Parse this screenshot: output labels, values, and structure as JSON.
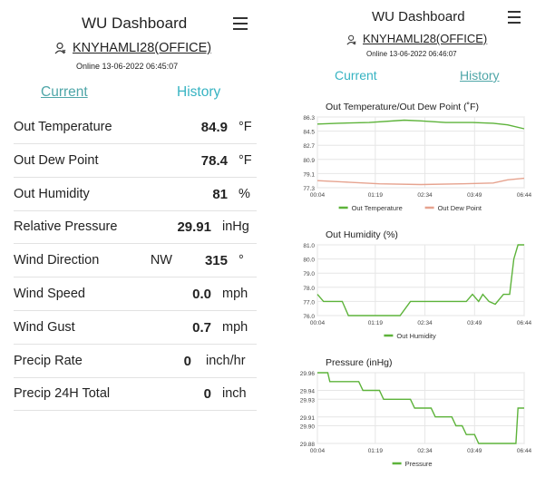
{
  "left": {
    "title": "WU Dashboard",
    "station": "KNYHAMLI28(OFFICE)",
    "online": "Online 13-06-2022 06:45:07",
    "tabs": [
      {
        "label": "Current",
        "active": true
      },
      {
        "label": "History",
        "active": false
      }
    ],
    "rows": [
      {
        "label": "Out Temperature",
        "value": "84.9",
        "unit": "°F"
      },
      {
        "label": "Out Dew Point",
        "value": "78.4",
        "unit": "°F"
      },
      {
        "label": "Out Humidity",
        "value": "81",
        "unit": "%"
      },
      {
        "label": "Relative Pressure",
        "value": "29.91",
        "unit": "inHg"
      },
      {
        "label": "Wind Direction",
        "dir": "NW",
        "value": "315",
        "unit": "°"
      },
      {
        "label": "Wind Speed",
        "value": "0.0",
        "unit": "mph"
      },
      {
        "label": "Wind Gust",
        "value": "0.7",
        "unit": "mph"
      },
      {
        "label": "Precip Rate",
        "value": "0",
        "unit": "inch/hr"
      },
      {
        "label": "Precip 24H Total",
        "value": "0",
        "unit": "inch"
      }
    ]
  },
  "right": {
    "title": "WU Dashboard",
    "station": "KNYHAMLI28(OFFICE)",
    "online": "Online 13-06-2022 06:46:07",
    "tabs": [
      {
        "label": "Current",
        "active": false
      },
      {
        "label": "History",
        "active": true
      }
    ]
  },
  "icons": {
    "menu": "hamburger-menu-icon",
    "user": "user-icon"
  },
  "colors": {
    "accent": "#36b3c2",
    "series_green": "#5db33a",
    "series_salmon": "#e6a38f"
  },
  "chart_data": [
    {
      "type": "line",
      "title": "Out Temperature/Out Dew Point (˚F)",
      "x": [
        "00:04",
        "01:19",
        "02:34",
        "03:49",
        "06:44"
      ],
      "yticks": [
        77.3,
        79.1,
        80.9,
        82.7,
        84.5,
        86.3
      ],
      "ylim": [
        77.3,
        86.3
      ],
      "series": [
        {
          "name": "Out Temperature",
          "color": "#5db33a",
          "points": [
            [
              0,
              85.4
            ],
            [
              0.1,
              85.5
            ],
            [
              0.25,
              85.6
            ],
            [
              0.42,
              85.9
            ],
            [
              0.5,
              85.8
            ],
            [
              0.62,
              85.6
            ],
            [
              0.75,
              85.6
            ],
            [
              0.85,
              85.5
            ],
            [
              0.92,
              85.3
            ],
            [
              1,
              84.8
            ]
          ]
        },
        {
          "name": "Out Dew Point",
          "color": "#e6a38f",
          "points": [
            [
              0,
              78.2
            ],
            [
              0.15,
              78.0
            ],
            [
              0.3,
              77.8
            ],
            [
              0.5,
              77.7
            ],
            [
              0.7,
              77.8
            ],
            [
              0.85,
              77.9
            ],
            [
              0.92,
              78.3
            ],
            [
              1,
              78.5
            ]
          ]
        }
      ],
      "legend": "bottom"
    },
    {
      "type": "line",
      "title": "Out Humidity (%)",
      "x": [
        "00:04",
        "01:19",
        "02:34",
        "03:49",
        "06:44"
      ],
      "yticks": [
        76.0,
        77.0,
        78.0,
        79.0,
        80.0,
        81.0
      ],
      "ylim": [
        76.0,
        81.0
      ],
      "series": [
        {
          "name": "Out Humidity",
          "color": "#5db33a",
          "points": [
            [
              0,
              77.5
            ],
            [
              0.03,
              77.0
            ],
            [
              0.12,
              77.0
            ],
            [
              0.15,
              76.0
            ],
            [
              0.4,
              76.0
            ],
            [
              0.45,
              77.0
            ],
            [
              0.72,
              77.0
            ],
            [
              0.75,
              77.5
            ],
            [
              0.78,
              77.0
            ],
            [
              0.8,
              77.5
            ],
            [
              0.83,
              77.0
            ],
            [
              0.86,
              76.8
            ],
            [
              0.9,
              77.5
            ],
            [
              0.93,
              77.5
            ],
            [
              0.95,
              80.0
            ],
            [
              0.97,
              81.0
            ],
            [
              1,
              81.0
            ]
          ]
        }
      ],
      "legend": "bottom"
    },
    {
      "type": "line",
      "title": "Pressure (inHg)",
      "x": [
        "00:04",
        "01:19",
        "02:34",
        "03:49",
        "06:44"
      ],
      "yticks": [
        29.88,
        29.9,
        29.91,
        29.93,
        29.94,
        29.96
      ],
      "ylim": [
        29.88,
        29.96
      ],
      "series": [
        {
          "name": "Pressure",
          "color": "#5db33a",
          "points": [
            [
              0,
              29.96
            ],
            [
              0.05,
              29.96
            ],
            [
              0.06,
              29.95
            ],
            [
              0.2,
              29.95
            ],
            [
              0.22,
              29.94
            ],
            [
              0.3,
              29.94
            ],
            [
              0.32,
              29.93
            ],
            [
              0.45,
              29.93
            ],
            [
              0.47,
              29.92
            ],
            [
              0.55,
              29.92
            ],
            [
              0.57,
              29.91
            ],
            [
              0.65,
              29.91
            ],
            [
              0.67,
              29.9
            ],
            [
              0.7,
              29.9
            ],
            [
              0.72,
              29.89
            ],
            [
              0.76,
              29.89
            ],
            [
              0.78,
              29.88
            ],
            [
              0.96,
              29.88
            ],
            [
              0.97,
              29.92
            ],
            [
              1,
              29.92
            ]
          ]
        }
      ],
      "legend": "bottom"
    }
  ]
}
